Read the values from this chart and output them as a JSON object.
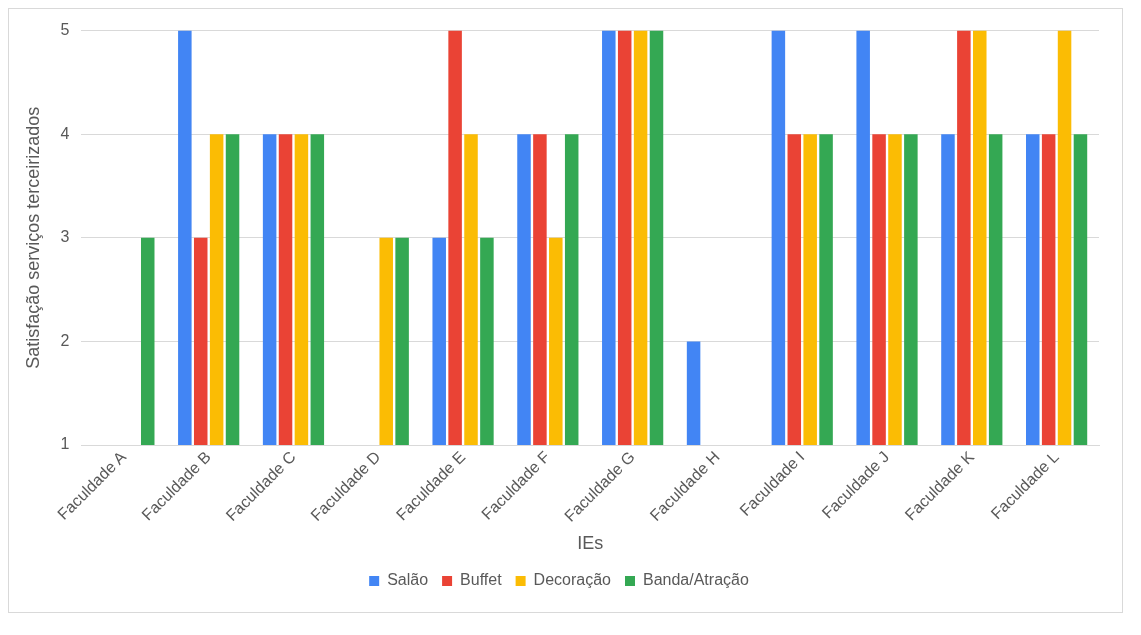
{
  "chart_data": {
    "type": "bar",
    "xlabel": "IEs",
    "ylabel": "Satisfação serviços terceirizados",
    "categories": [
      "Faculdade A",
      "Faculdade B",
      "Faculdade C",
      "Faculdade D",
      "Faculdade E",
      "Faculdade F",
      "Faculdade G",
      "Faculdade H",
      "Faculdade I",
      "Faculdade J",
      "Faculdade K",
      "Faculdade L"
    ],
    "series": [
      {
        "name": "Salão",
        "color": "#4285f4",
        "values": [
          null,
          5,
          4,
          null,
          3,
          4,
          5,
          2,
          5,
          5,
          4,
          4
        ]
      },
      {
        "name": "Buffet",
        "color": "#ea4335",
        "values": [
          null,
          3,
          4,
          null,
          5,
          4,
          5,
          null,
          4,
          4,
          5,
          4
        ]
      },
      {
        "name": "Decoração",
        "color": "#fbbc04",
        "values": [
          null,
          4,
          4,
          3,
          4,
          3,
          5,
          null,
          4,
          4,
          5,
          5
        ]
      },
      {
        "name": "Banda/Atração",
        "color": "#34a853",
        "values": [
          3,
          4,
          4,
          3,
          3,
          4,
          5,
          null,
          4,
          4,
          4,
          4
        ]
      }
    ],
    "ylim": [
      1,
      5
    ],
    "yticks": [
      1,
      2,
      3,
      4,
      5
    ],
    "grid": "y",
    "legend": "bottom"
  }
}
